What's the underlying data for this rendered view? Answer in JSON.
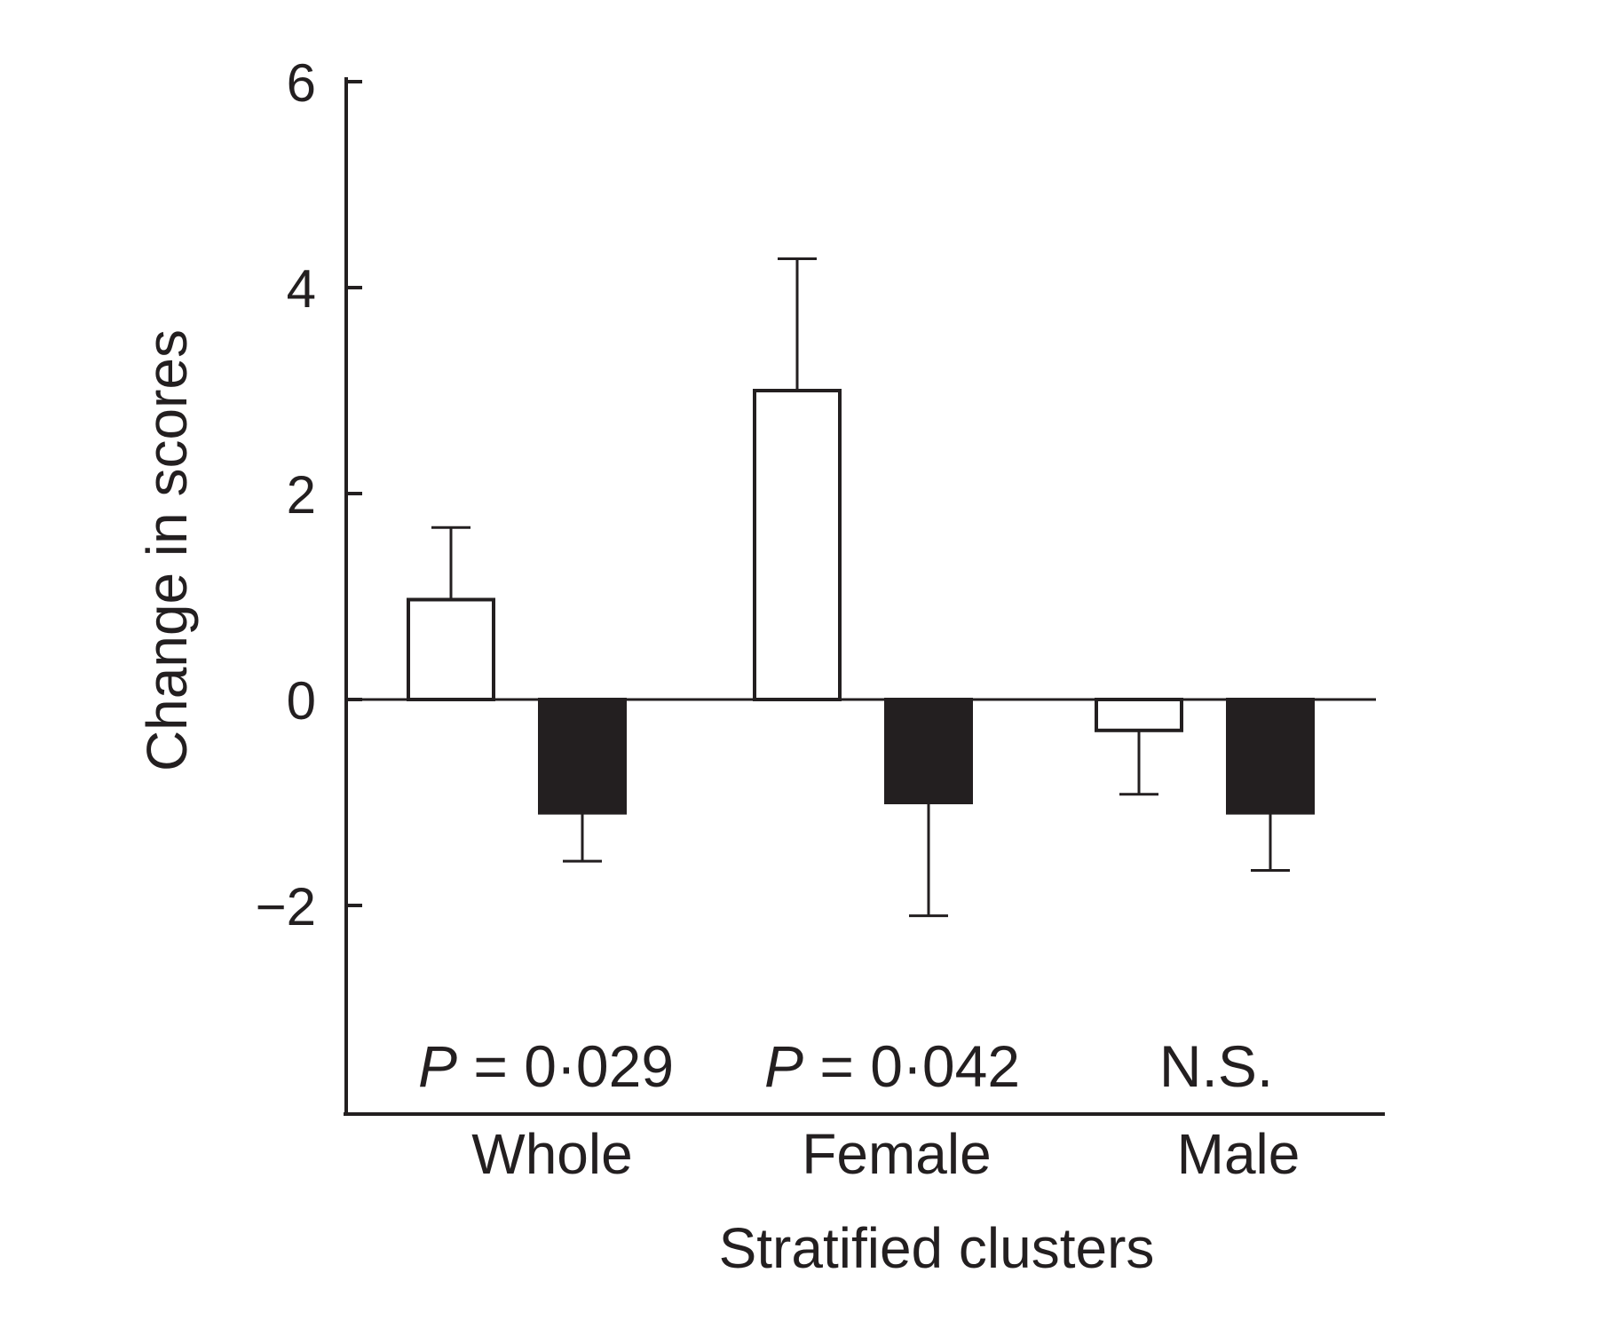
{
  "chart_data": {
    "type": "bar",
    "title": "",
    "xlabel": "Stratified clusters",
    "ylabel": "Change in scores",
    "ylim": [
      -4,
      6
    ],
    "yticks": [
      6,
      4,
      2,
      0,
      -2
    ],
    "ytick_labels": [
      "6",
      "4",
      "2",
      "0",
      "−2"
    ],
    "grid": false,
    "legend": "none",
    "categories": [
      "Whole",
      "Female",
      "Male"
    ],
    "series": [
      {
        "values": [
          0.97,
          3.0,
          -0.3
        ],
        "errors": [
          0.7,
          1.28,
          0.62
        ],
        "color": "#ffffff"
      },
      {
        "values": [
          -1.1,
          -1.0,
          -1.1
        ],
        "errors": [
          0.47,
          1.1,
          0.56
        ],
        "color": "#231f20"
      }
    ],
    "annotations": [
      {
        "prefix": "P",
        "text": " = 0·029"
      },
      {
        "prefix": "P",
        "text": " = 0·042"
      },
      {
        "prefix": "",
        "text": "N.S."
      }
    ]
  }
}
